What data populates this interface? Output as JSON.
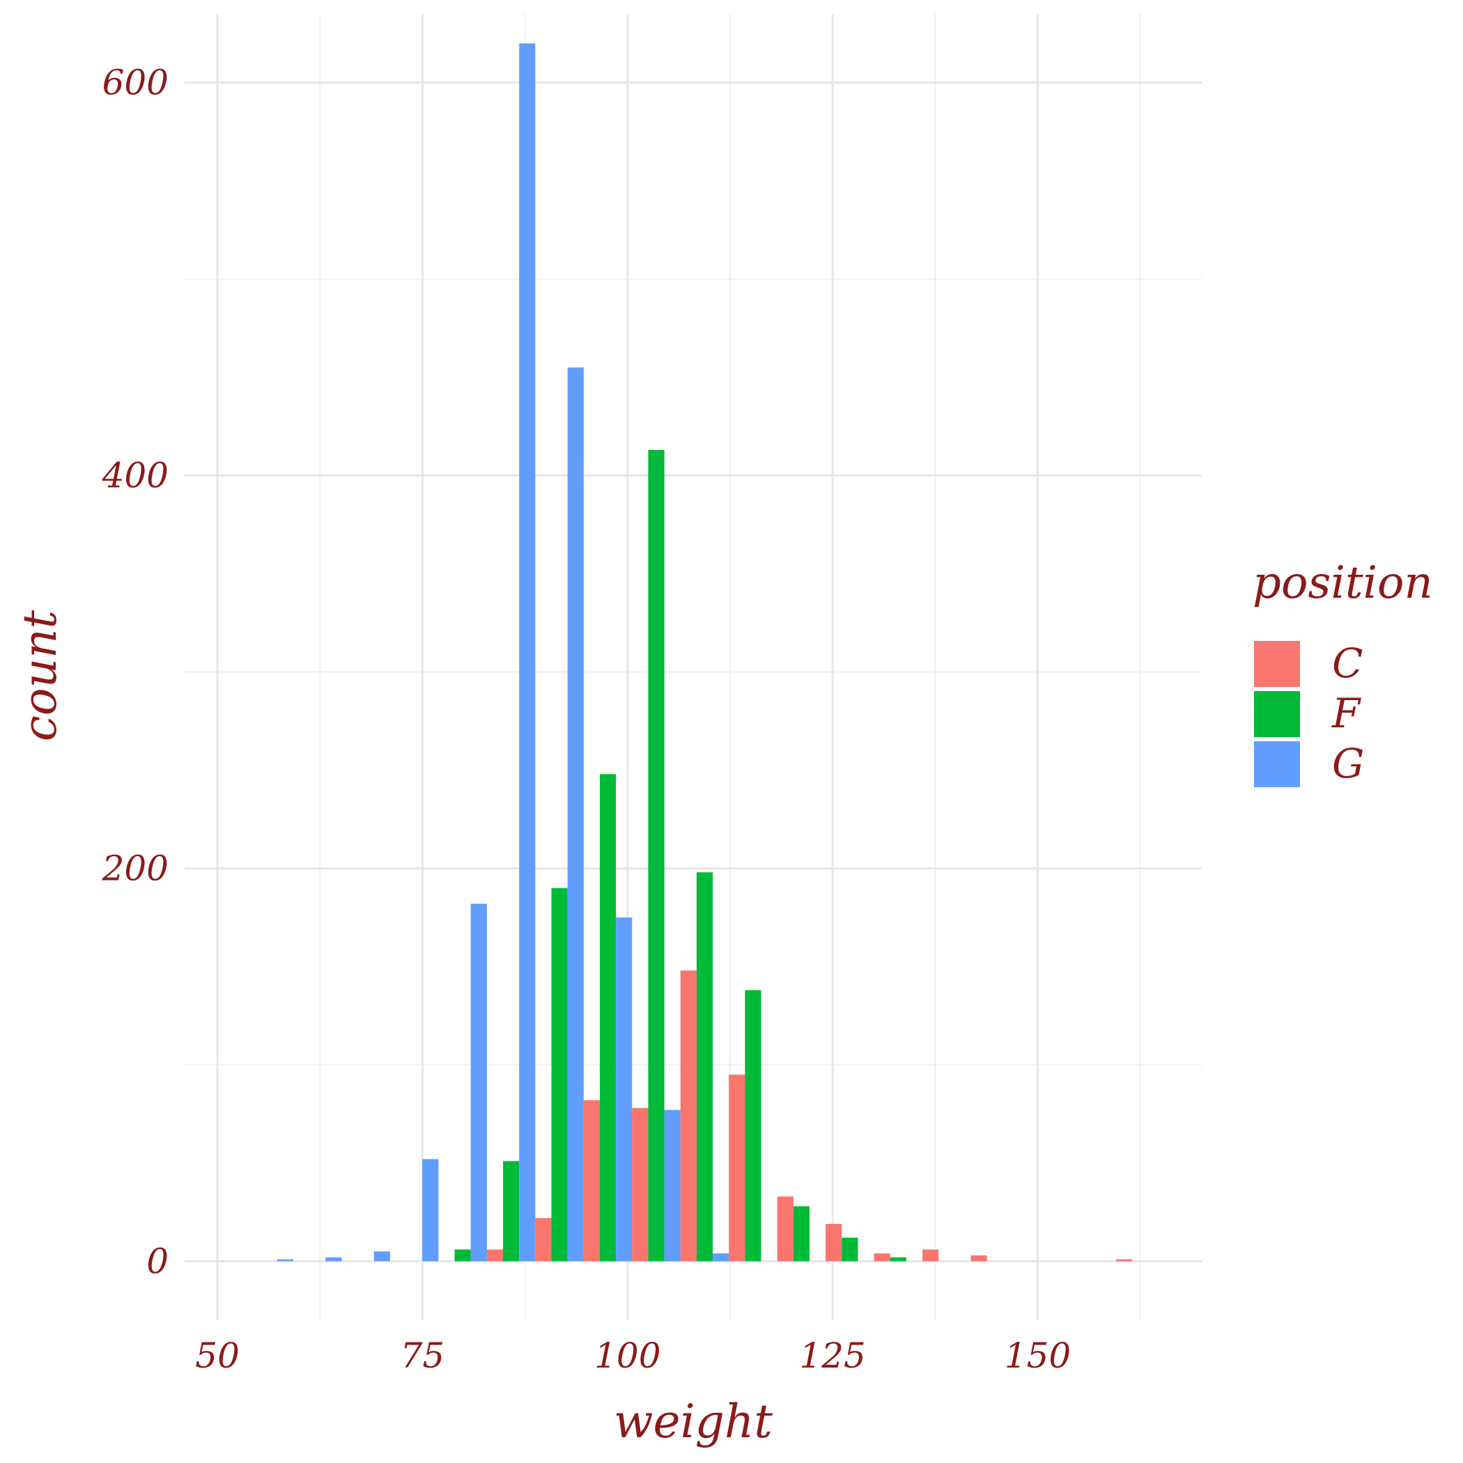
{
  "chart_data": {
    "type": "bar",
    "subtype": "dodged-histogram",
    "title": "",
    "xlabel": "weight",
    "ylabel": "count",
    "xlim": [
      46,
      170
    ],
    "ylim": [
      -30,
      635
    ],
    "x_ticks": [
      50,
      75,
      100,
      125,
      150
    ],
    "x_tick_labels": [
      "50",
      "75",
      "100",
      "125",
      "150"
    ],
    "y_ticks": [
      0,
      200,
      400,
      600
    ],
    "y_tick_labels": [
      "0",
      "200",
      "400",
      "600"
    ],
    "bin_width": 5.9,
    "grid": true,
    "legend": {
      "title": "position",
      "placement": "right"
    },
    "bin_centers": [
      56.3,
      62.2,
      68.1,
      74.0,
      79.9,
      85.8,
      91.7,
      97.6,
      103.5,
      109.4,
      115.3,
      121.2,
      127.1,
      133.0,
      138.9,
      144.8,
      150.7,
      156.6,
      162.5
    ],
    "series": [
      {
        "name": "C",
        "color": "#F8766D",
        "values": [
          0,
          0,
          0,
          0,
          0,
          6,
          22,
          82,
          78,
          148,
          95,
          33,
          19,
          4,
          6,
          3,
          0,
          0,
          1
        ]
      },
      {
        "name": "F",
        "color": "#00BA38",
        "values": [
          0,
          0,
          0,
          0,
          6,
          51,
          190,
          248,
          413,
          198,
          138,
          28,
          12,
          2,
          0,
          0,
          0,
          0,
          0
        ]
      },
      {
        "name": "G",
        "color": "#619CFF",
        "values": [
          1,
          2,
          5,
          52,
          182,
          620,
          455,
          175,
          77,
          4,
          0,
          0,
          0,
          0,
          0,
          0,
          0,
          0,
          0
        ]
      }
    ]
  }
}
